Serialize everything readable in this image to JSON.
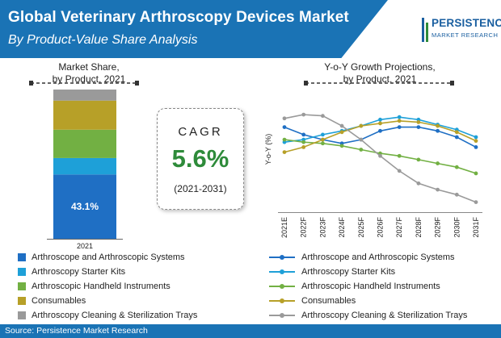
{
  "header": {
    "title": "Global Veterinary Arthroscopy Devices Market",
    "subtitle": "By Product-Value Share Analysis"
  },
  "logo": {
    "name": "PERSISTENCE",
    "sub": "MARKET RESEARCH"
  },
  "cagr": {
    "label": "CAGR",
    "value": "5.6%",
    "period": "(2021-2031)"
  },
  "left_legend": [
    "Arthroscope and Arthroscopic Systems",
    "Arthroscopy Starter Kits",
    "Arthroscopic Handheld Instruments",
    "Consumables",
    "Arthroscopy Cleaning & Sterilization Trays"
  ],
  "right_legend": [
    "Arthroscope and Arthroscopic Systems",
    "Arthroscopy Starter Kits",
    "Arthroscopic Handheld Instruments",
    "Consumables",
    "Arthroscopy Cleaning & Sterilization Trays"
  ],
  "footer": {
    "source": "Source: Persistence Market Research"
  },
  "colors": {
    "primary": "#1a73b5",
    "systems": "#1f6fc4",
    "starter": "#1ea0d8",
    "handheld": "#72b043",
    "consumables": "#b7a028",
    "trays": "#9a9a9a",
    "cagr": "#2e8b3a"
  },
  "chart_data": [
    {
      "type": "bar",
      "stacked": true,
      "title": "Market Share,\nby Product, 2021",
      "title_lines": [
        "Market Share,",
        "by Product, 2021"
      ],
      "categories": [
        "2021"
      ],
      "series": [
        {
          "name": "Arthroscope and Arthroscopic Systems",
          "values": [
            43.1
          ],
          "label": "43.1%"
        },
        {
          "name": "Arthroscopy Starter Kits",
          "values": [
            11.0
          ]
        },
        {
          "name": "Arthroscopic Handheld Instruments",
          "values": [
            19.0
          ]
        },
        {
          "name": "Consumables",
          "values": [
            19.5
          ]
        },
        {
          "name": "Arthroscopy Cleaning & Sterilization Trays",
          "values": [
            7.4
          ]
        }
      ],
      "ylim": [
        0,
        100
      ]
    },
    {
      "type": "line",
      "title": "Y-o-Y Growth Projections,\nby Product, 2021",
      "title_lines": [
        "Y-o-Y Growth Projections,",
        "by Product, 2021"
      ],
      "ylabel": "Y-o-Y (%)",
      "x": [
        "2021E",
        "2022F",
        "2023F",
        "2024F",
        "2025F",
        "2026F",
        "2027F",
        "2028F",
        "2029F",
        "2030F",
        "2031F"
      ],
      "ylim": [
        0,
        10
      ],
      "series": [
        {
          "name": "Arthroscope and Arthroscopic Systems",
          "values": [
            6.8,
            6.2,
            5.8,
            5.5,
            5.8,
            6.5,
            6.8,
            6.8,
            6.5,
            6.0,
            5.2
          ]
        },
        {
          "name": "Arthroscopy Starter Kits",
          "values": [
            5.6,
            5.8,
            6.2,
            6.5,
            6.9,
            7.4,
            7.6,
            7.4,
            7.0,
            6.6,
            6.0
          ]
        },
        {
          "name": "Arthroscopic Handheld Instruments",
          "values": [
            5.8,
            5.6,
            5.5,
            5.3,
            5.0,
            4.7,
            4.5,
            4.2,
            3.9,
            3.6,
            3.1
          ]
        },
        {
          "name": "Consumables",
          "values": [
            4.8,
            5.2,
            5.8,
            6.4,
            6.9,
            7.1,
            7.3,
            7.2,
            6.9,
            6.4,
            5.7
          ]
        },
        {
          "name": "Arthroscopy Cleaning & Sterilization Trays",
          "values": [
            7.5,
            7.8,
            7.7,
            6.9,
            5.8,
            4.5,
            3.3,
            2.3,
            1.8,
            1.4,
            0.8
          ]
        }
      ]
    }
  ]
}
